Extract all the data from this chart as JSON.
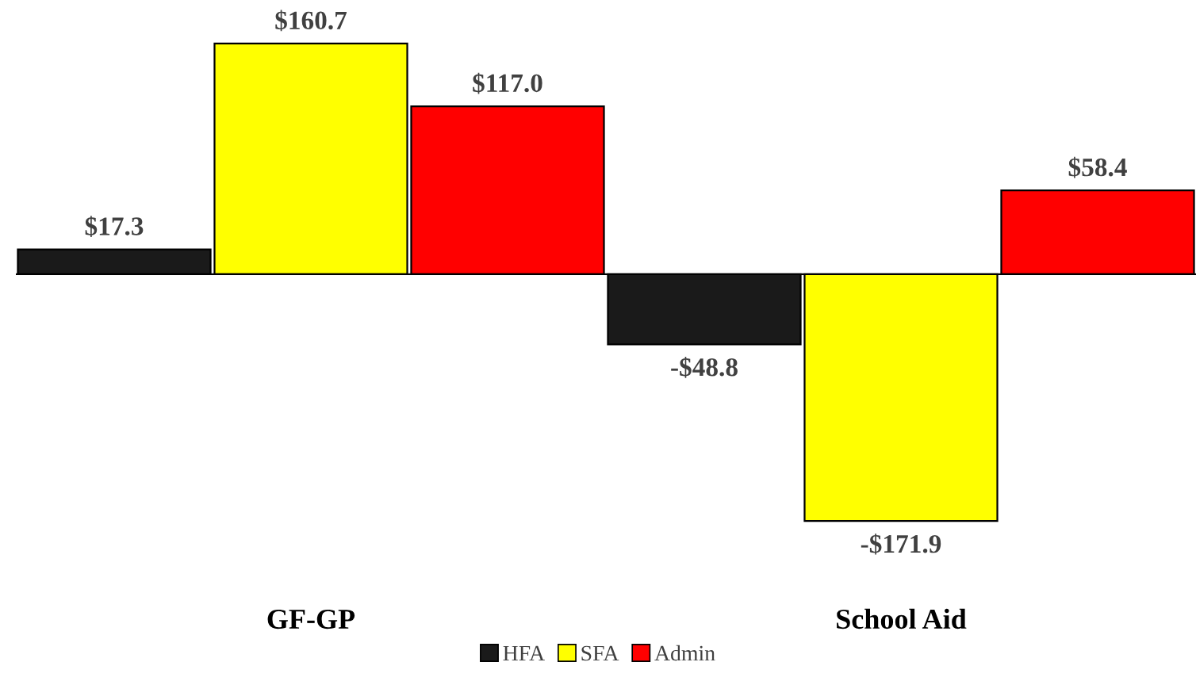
{
  "chart_data": {
    "type": "bar",
    "categories": [
      "GF-GP",
      "School Aid"
    ],
    "series": [
      {
        "name": "HFA",
        "color": "#1a1a1a",
        "values": [
          17.3,
          -48.8
        ],
        "value_labels": [
          "$17.3",
          "-$48.8"
        ]
      },
      {
        "name": "SFA",
        "color": "#ffff00",
        "values": [
          160.7,
          -171.9
        ],
        "value_labels": [
          "$160.7",
          "-$171.9"
        ]
      },
      {
        "name": "Admin",
        "color": "#ff0000",
        "values": [
          117.0,
          58.4
        ],
        "value_labels": [
          "$117.0",
          "$58.4"
        ]
      }
    ],
    "tick_labels": "x",
    "grid": false,
    "legend": "bottom"
  }
}
